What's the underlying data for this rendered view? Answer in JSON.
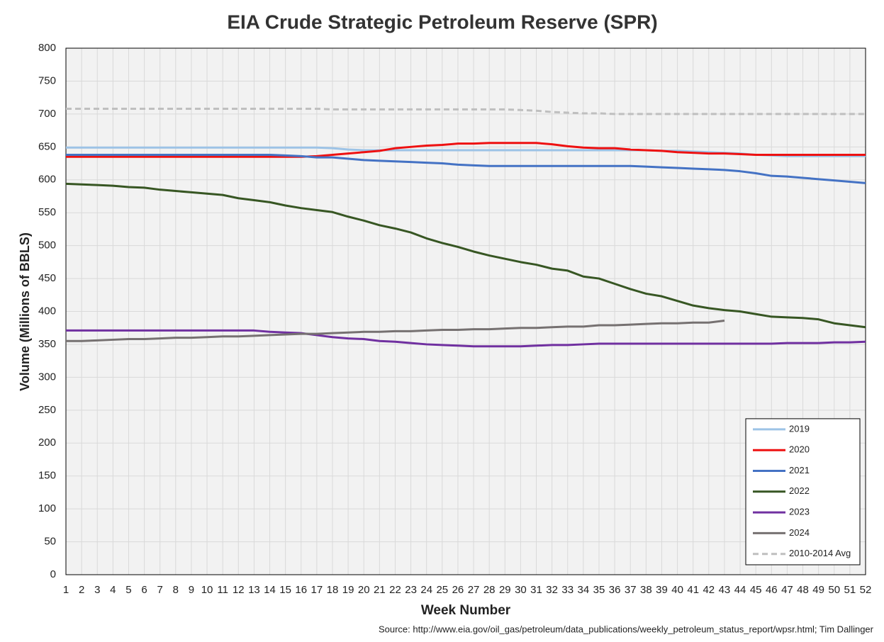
{
  "chart_data": {
    "type": "line",
    "title": "EIA Crude Strategic Petroleum Reserve (SPR)",
    "x_label": "Week Number",
    "y_label": "Volume (Millions of BBLS)",
    "source": "Source: http://www.eia.gov/oil_gas/petroleum/data_publications/weekly_petroleum_status_report/wpsr.html; Tim Dallinger",
    "x": [
      1,
      2,
      3,
      4,
      5,
      6,
      7,
      8,
      9,
      10,
      11,
      12,
      13,
      14,
      15,
      16,
      17,
      18,
      19,
      20,
      21,
      22,
      23,
      24,
      25,
      26,
      27,
      28,
      29,
      30,
      31,
      32,
      33,
      34,
      35,
      36,
      37,
      38,
      39,
      40,
      41,
      42,
      43,
      44,
      45,
      46,
      47,
      48,
      49,
      50,
      51,
      52
    ],
    "xlim": [
      1,
      52
    ],
    "ylim": [
      0,
      800
    ],
    "yticks": [
      0,
      50,
      100,
      150,
      200,
      250,
      300,
      350,
      400,
      450,
      500,
      550,
      600,
      650,
      700,
      750,
      800
    ],
    "grid": true,
    "legend": "lower right",
    "series": [
      {
        "name": "2019",
        "color": "#9dc3e6",
        "values": [
          649,
          649,
          649,
          649,
          649,
          649,
          649,
          649,
          649,
          649,
          649,
          649,
          649,
          649,
          649,
          649,
          649,
          648,
          646,
          645,
          645,
          645,
          645,
          645,
          645,
          645,
          645,
          645,
          645,
          645,
          645,
          645,
          645,
          645,
          645,
          645,
          645,
          645,
          644,
          644,
          643,
          642,
          641,
          640,
          638,
          637,
          636,
          636,
          636,
          636,
          636,
          636
        ]
      },
      {
        "name": "2020",
        "color": "#ee1111",
        "values": [
          635,
          635,
          635,
          635,
          635,
          635,
          635,
          635,
          635,
          635,
          635,
          635,
          635,
          635,
          635,
          635,
          636,
          638,
          640,
          642,
          644,
          648,
          650,
          652,
          653,
          655,
          655,
          656,
          656,
          656,
          656,
          654,
          651,
          649,
          648,
          648,
          646,
          645,
          644,
          642,
          641,
          640,
          640,
          639,
          638,
          638,
          638,
          638,
          638,
          638,
          638,
          638
        ]
      },
      {
        "name": "2021",
        "color": "#4472c4",
        "values": [
          638,
          638,
          638,
          638,
          638,
          638,
          638,
          638,
          638,
          638,
          638,
          638,
          638,
          638,
          637,
          636,
          634,
          634,
          632,
          630,
          629,
          628,
          627,
          626,
          625,
          623,
          622,
          621,
          621,
          621,
          621,
          621,
          621,
          621,
          621,
          621,
          621,
          620,
          619,
          618,
          617,
          616,
          615,
          613,
          610,
          606,
          605,
          603,
          601,
          599,
          597,
          595
        ]
      },
      {
        "name": "2022",
        "color": "#375623",
        "values": [
          594,
          593,
          592,
          591,
          589,
          588,
          585,
          583,
          581,
          579,
          577,
          572,
          569,
          566,
          561,
          557,
          554,
          551,
          544,
          538,
          531,
          526,
          520,
          511,
          504,
          498,
          491,
          485,
          480,
          475,
          471,
          465,
          462,
          453,
          450,
          442,
          434,
          427,
          423,
          416,
          409,
          405,
          402,
          400,
          396,
          392,
          391,
          390,
          388,
          382,
          379,
          376
        ]
      },
      {
        "name": "2023",
        "color": "#7030a0",
        "values": [
          371,
          371,
          371,
          371,
          371,
          371,
          371,
          371,
          371,
          371,
          371,
          371,
          371,
          369,
          368,
          367,
          364,
          361,
          359,
          358,
          355,
          354,
          352,
          350,
          349,
          348,
          347,
          347,
          347,
          347,
          348,
          349,
          349,
          350,
          351,
          351,
          351,
          351,
          351,
          351,
          351,
          351,
          351,
          351,
          351,
          351,
          352,
          352,
          352,
          353,
          353,
          354
        ]
      },
      {
        "name": "2024",
        "color": "#767171",
        "values": [
          355,
          355,
          356,
          357,
          358,
          358,
          359,
          360,
          360,
          361,
          362,
          362,
          363,
          364,
          365,
          366,
          366,
          367,
          368,
          369,
          369,
          370,
          370,
          371,
          372,
          372,
          373,
          373,
          374,
          375,
          375,
          376,
          377,
          377,
          379,
          379,
          380,
          381,
          382,
          382,
          383,
          383,
          386,
          null,
          null,
          null,
          null,
          null,
          null,
          null,
          null,
          null
        ]
      },
      {
        "name": "2010-2014 Avg",
        "color": "#bfbfbf",
        "dashed": true,
        "values": [
          708,
          708,
          708,
          708,
          708,
          708,
          708,
          708,
          708,
          708,
          708,
          708,
          708,
          708,
          708,
          708,
          708,
          707,
          707,
          707,
          707,
          707,
          707,
          707,
          707,
          707,
          707,
          707,
          707,
          706,
          705,
          703,
          702,
          701,
          701,
          700,
          700,
          700,
          700,
          700,
          700,
          700,
          700,
          700,
          700,
          700,
          700,
          700,
          700,
          700,
          700,
          700
        ]
      }
    ]
  }
}
